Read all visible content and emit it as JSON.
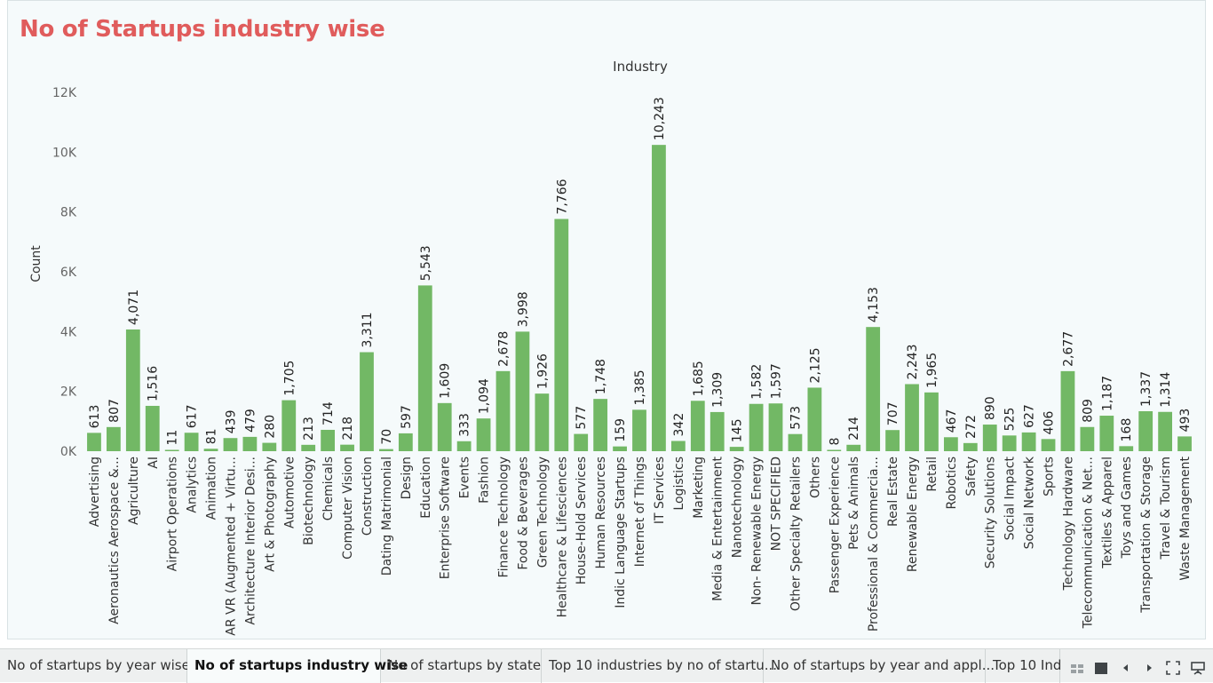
{
  "title": "No of Startups industry wise",
  "chart_data": {
    "type": "bar",
    "header": "Industry",
    "ylabel": "Count",
    "ylim": [
      0,
      12000
    ],
    "yticks": [
      {
        "value": 0,
        "label": "0K"
      },
      {
        "value": 2000,
        "label": "2K"
      },
      {
        "value": 4000,
        "label": "4K"
      },
      {
        "value": 6000,
        "label": "6K"
      },
      {
        "value": 8000,
        "label": "8K"
      },
      {
        "value": 10000,
        "label": "10K"
      },
      {
        "value": 12000,
        "label": "12K"
      }
    ],
    "bar_color": "#72b865",
    "categories": [
      "Advertising",
      "Aeronautics Aerospace &...",
      "Agriculture",
      "AI",
      "Airport Operations",
      "Analytics",
      "Animation",
      "AR VR (Augmented + Virtu...",
      "Architecture Interior Desi...",
      "Art & Photography",
      "Automotive",
      "Biotechnology",
      "Chemicals",
      "Computer Vision",
      "Construction",
      "Dating Matrimonial",
      "Design",
      "Education",
      "Enterprise Software",
      "Events",
      "Fashion",
      "Finance Technology",
      "Food & Beverages",
      "Green Technology",
      "Healthcare & Lifesciences",
      "House-Hold Services",
      "Human Resources",
      "Indic Language Startups",
      "Internet of Things",
      "IT Services",
      "Logistics",
      "Marketing",
      "Media & Entertainment",
      "Nanotechnology",
      "Non- Renewable Energy",
      "NOT SPECIFIED",
      "Other Specialty Retailers",
      "Others",
      "Passenger Experience",
      "Pets & Animals",
      "Professional & Commercia...",
      "Real Estate",
      "Renewable Energy",
      "Retail",
      "Robotics",
      "Safety",
      "Security Solutions",
      "Social Impact",
      "Social Network",
      "Sports",
      "Technology Hardware",
      "Telecommunication & Net...",
      "Textiles & Apparel",
      "Toys and Games",
      "Transportation & Storage",
      "Travel & Tourism",
      "Waste Management"
    ],
    "values": [
      613,
      807,
      4071,
      1516,
      11,
      617,
      81,
      439,
      479,
      280,
      1705,
      213,
      714,
      218,
      3311,
      70,
      597,
      5543,
      1609,
      333,
      1094,
      2678,
      3998,
      1926,
      7766,
      577,
      1748,
      159,
      1385,
      10243,
      342,
      1685,
      1309,
      145,
      1582,
      1597,
      573,
      2125,
      8,
      214,
      4153,
      707,
      2243,
      1965,
      467,
      272,
      890,
      525,
      627,
      406,
      2677,
      809,
      1187,
      168,
      1337,
      1314,
      493
    ],
    "labels": [
      "613",
      "807",
      "4,071",
      "1,516",
      "11",
      "617",
      "81",
      "439",
      "479",
      "280",
      "1,705",
      "213",
      "714",
      "218",
      "3,311",
      "70",
      "597",
      "5,543",
      "1,609",
      "333",
      "1,094",
      "2,678",
      "3,998",
      "1,926",
      "7,766",
      "577",
      "1,748",
      "159",
      "1,385",
      "10,243",
      "342",
      "1,685",
      "1,309",
      "145",
      "1,582",
      "1,597",
      "573",
      "2,125",
      "8",
      "214",
      "4,153",
      "707",
      "2,243",
      "1,965",
      "467",
      "272",
      "890",
      "525",
      "627",
      "406",
      "2,677",
      "809",
      "1,187",
      "168",
      "1,337",
      "1,314",
      "493"
    ]
  },
  "tabs": [
    {
      "label": "No of startups by year wise",
      "active": false
    },
    {
      "label": "No of startups industry wise",
      "active": true
    },
    {
      "label": "No of startups by state",
      "active": false
    },
    {
      "label": "Top 10 industries by no of startu...",
      "active": false
    },
    {
      "label": "No of startups by  year and appl...",
      "active": false
    },
    {
      "label": "Top 10 Ind",
      "active": false
    }
  ]
}
